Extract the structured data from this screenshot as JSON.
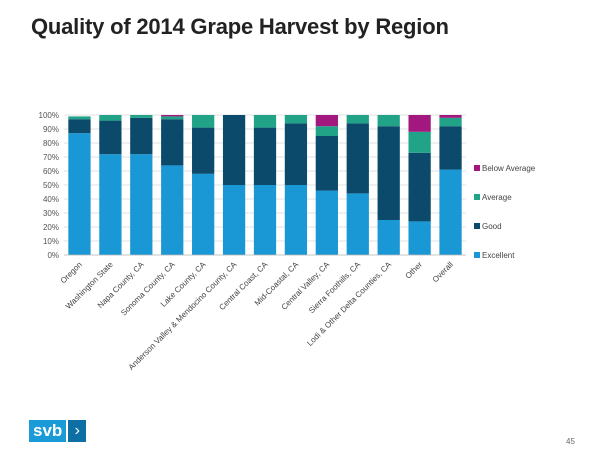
{
  "title": "Quality of 2014 Grape Harvest by Region",
  "logo_text": "svb",
  "page_number": "45",
  "chart_data": {
    "type": "bar",
    "stacked": true,
    "categories": [
      "Oregon",
      "Washington State",
      "Napa County, CA",
      "Sonoma County, CA",
      "Lake County, CA",
      "Anderson Valley & Mendocino County, CA",
      "Central Coast, CA",
      "Mid-Coastal, CA",
      "Central Valley, CA",
      "Sierra Foothills, CA",
      "Lodi & Other Delta Counties, CA",
      "Other",
      "Overall"
    ],
    "series": [
      {
        "name": "Excellent",
        "color": "#1a97d5",
        "values": [
          87,
          72,
          72,
          64,
          58,
          50,
          50,
          50,
          46,
          44,
          25,
          24,
          61
        ]
      },
      {
        "name": "Good",
        "color": "#0b4a6b",
        "values": [
          10,
          24,
          26,
          33,
          33,
          50,
          41,
          44,
          39,
          50,
          67,
          49,
          31
        ]
      },
      {
        "name": "Average",
        "color": "#20a386",
        "values": [
          2,
          4,
          2,
          2,
          9,
          0,
          9,
          6,
          7,
          6,
          8,
          15,
          6
        ]
      },
      {
        "name": "Below Average",
        "color": "#a2187f",
        "values": [
          0,
          0,
          0,
          1,
          0,
          0,
          0,
          0,
          8,
          0,
          0,
          12,
          2
        ]
      }
    ],
    "ylim": [
      0,
      100
    ],
    "yticks": [
      "0%",
      "10%",
      "20%",
      "30%",
      "40%",
      "50%",
      "60%",
      "70%",
      "80%",
      "90%",
      "100%"
    ],
    "grid": true,
    "legend": "right"
  }
}
